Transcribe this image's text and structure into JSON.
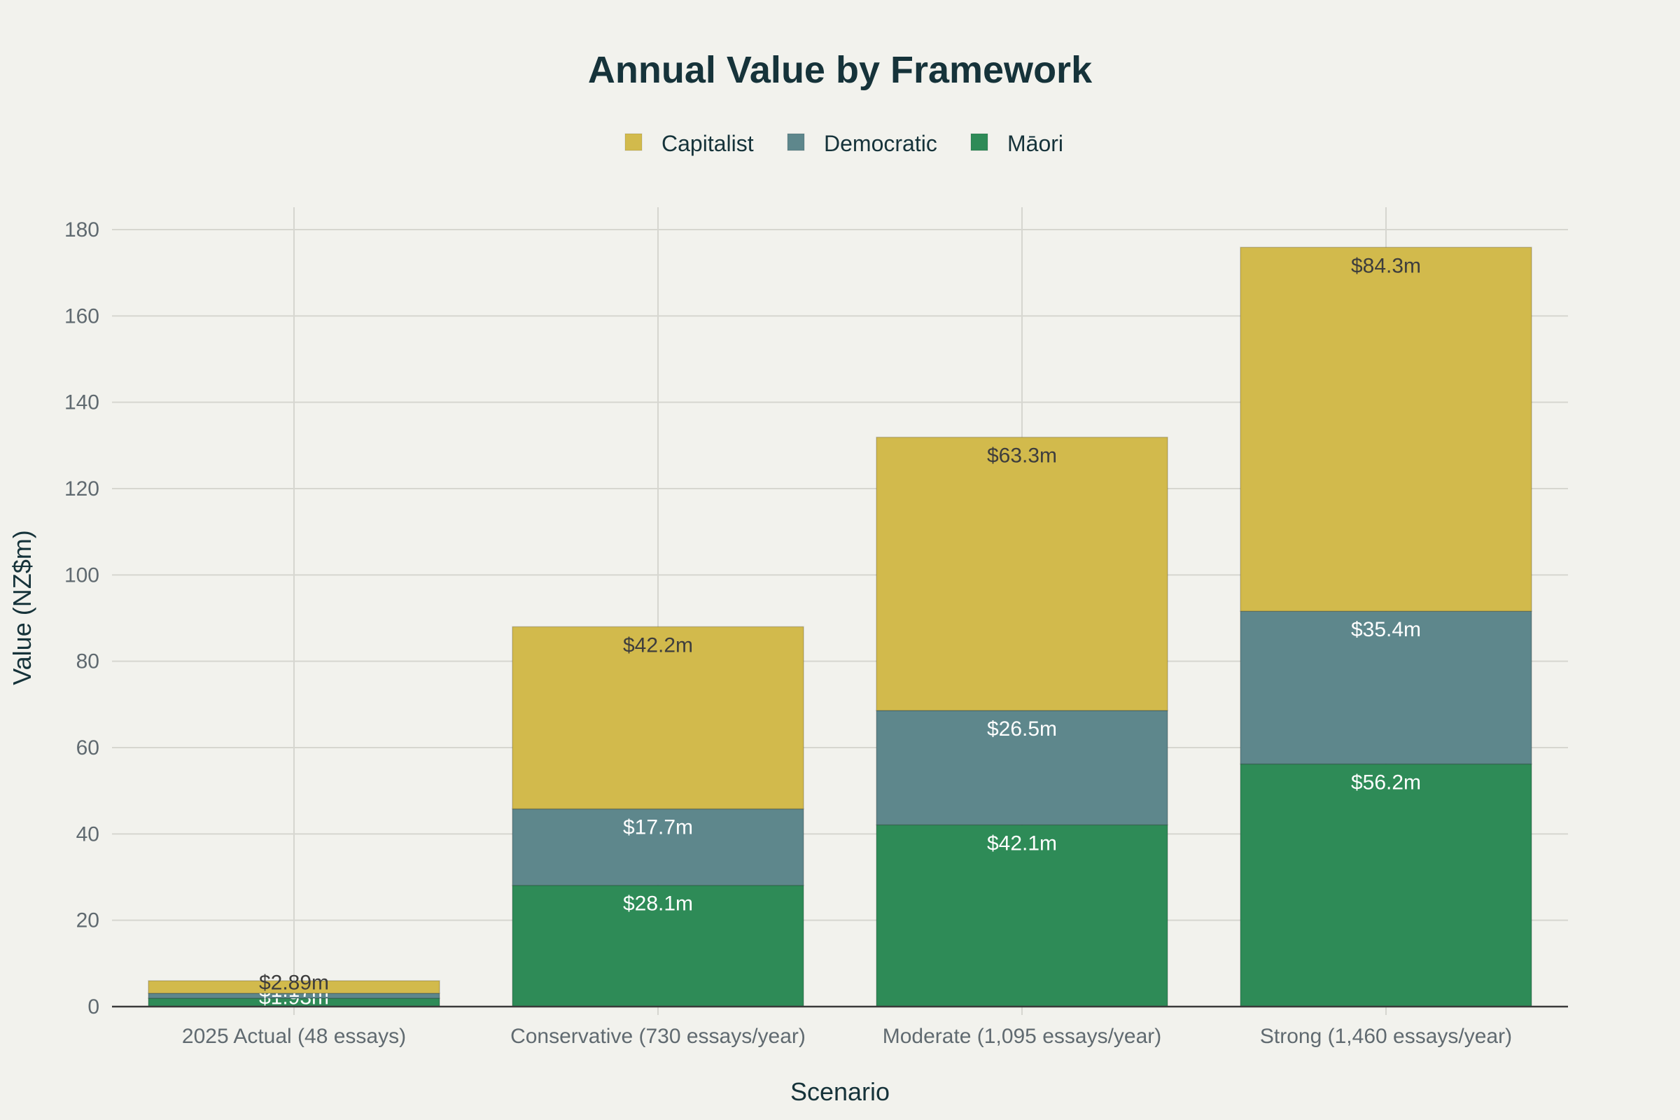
{
  "chart_data": {
    "type": "bar",
    "stacked": true,
    "title": "Annual Value by Framework",
    "xlabel": "Scenario",
    "ylabel": "Value (NZ$m)",
    "ylim": [
      0,
      185
    ],
    "yticks": [
      0,
      20,
      40,
      60,
      80,
      100,
      120,
      140,
      160,
      180
    ],
    "grid": true,
    "legend_position": "top-center",
    "categories": [
      "2025 Actual (48 essays)",
      "Conservative (730 essays/year)",
      "Moderate (1,095 essays/year)",
      "Strong (1,460 essays/year)"
    ],
    "series": [
      {
        "name": "Māori",
        "color": "#2e8b57",
        "label_color": "#ffffff",
        "values": [
          1.93,
          28.1,
          42.1,
          56.2
        ],
        "labels": [
          "$1.93m",
          "$28.1m",
          "$42.1m",
          "$56.2m"
        ]
      },
      {
        "name": "Democratic",
        "color": "#5e878c",
        "label_color": "#ffffff",
        "values": [
          1.17,
          17.7,
          26.5,
          35.4
        ],
        "labels": [
          "$1.17m",
          "$17.7m",
          "$26.5m",
          "$35.4m"
        ]
      },
      {
        "name": "Capitalist",
        "color": "#d2ba4c",
        "label_color": "#3d3d3d",
        "values": [
          2.89,
          42.2,
          63.3,
          84.3
        ],
        "labels": [
          "$2.89m",
          "$42.2m",
          "$63.3m",
          "$84.3m"
        ]
      }
    ],
    "legend_order": [
      "Capitalist",
      "Democratic",
      "Māori"
    ]
  }
}
